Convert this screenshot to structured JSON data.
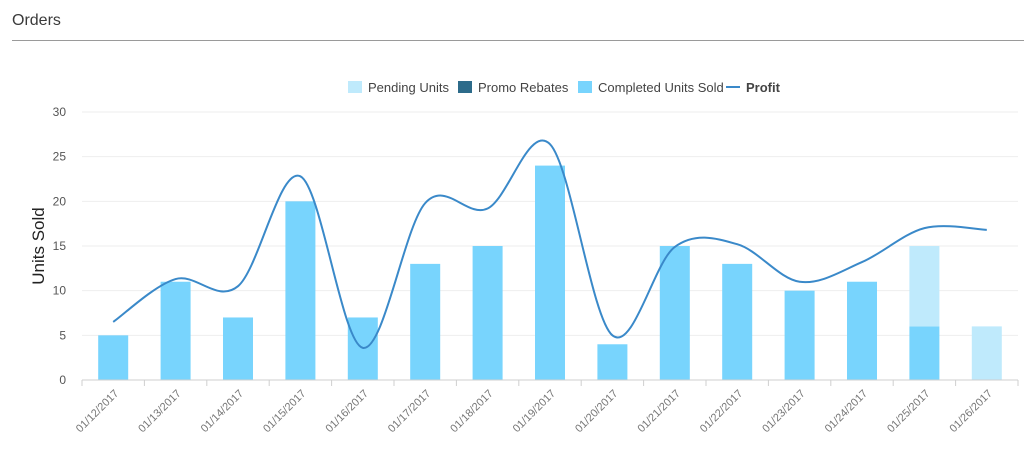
{
  "page": {
    "title": "Orders"
  },
  "colors": {
    "pending": "#bfeafc",
    "promo": "#2d6b8a",
    "completed": "#78d4fd",
    "profit": "#3a89c9",
    "axis_text": "#555555",
    "grid": "#eeeeee"
  },
  "chart_data": {
    "type": "bar",
    "ylabel": "Units Sold",
    "xlabel": "",
    "ylim": [
      0,
      30
    ],
    "yticks": [
      0,
      5,
      10,
      15,
      20,
      25,
      30
    ],
    "grid": true,
    "legend_position": "top-center",
    "categories": [
      "01/12/2017",
      "01/13/2017",
      "01/14/2017",
      "01/15/2017",
      "01/16/2017",
      "01/17/2017",
      "01/18/2017",
      "01/19/2017",
      "01/20/2017",
      "01/21/2017",
      "01/22/2017",
      "01/23/2017",
      "01/24/2017",
      "01/25/2017",
      "01/26/2017"
    ],
    "series": [
      {
        "name": "Pending Units",
        "kind": "bar",
        "values": [
          0,
          0,
          0,
          0,
          0,
          0,
          0,
          0,
          0,
          0,
          0,
          0,
          0,
          9,
          6
        ]
      },
      {
        "name": "Promo Rebates",
        "kind": "bar",
        "values": [
          0,
          0,
          0,
          0,
          0,
          0,
          0,
          0,
          0,
          0,
          0,
          0,
          0,
          0,
          0
        ]
      },
      {
        "name": "Completed Units Sold",
        "kind": "bar",
        "values": [
          5,
          11,
          7,
          20,
          7,
          13,
          15,
          24,
          4,
          15,
          13,
          10,
          11,
          6,
          0
        ]
      },
      {
        "name": "Profit",
        "kind": "line",
        "values": [
          6.5,
          11.3,
          10.5,
          22.8,
          3.6,
          19.8,
          19.2,
          26.4,
          5.0,
          14.9,
          15.2,
          11.0,
          13.2,
          17.0,
          16.8
        ]
      }
    ]
  }
}
